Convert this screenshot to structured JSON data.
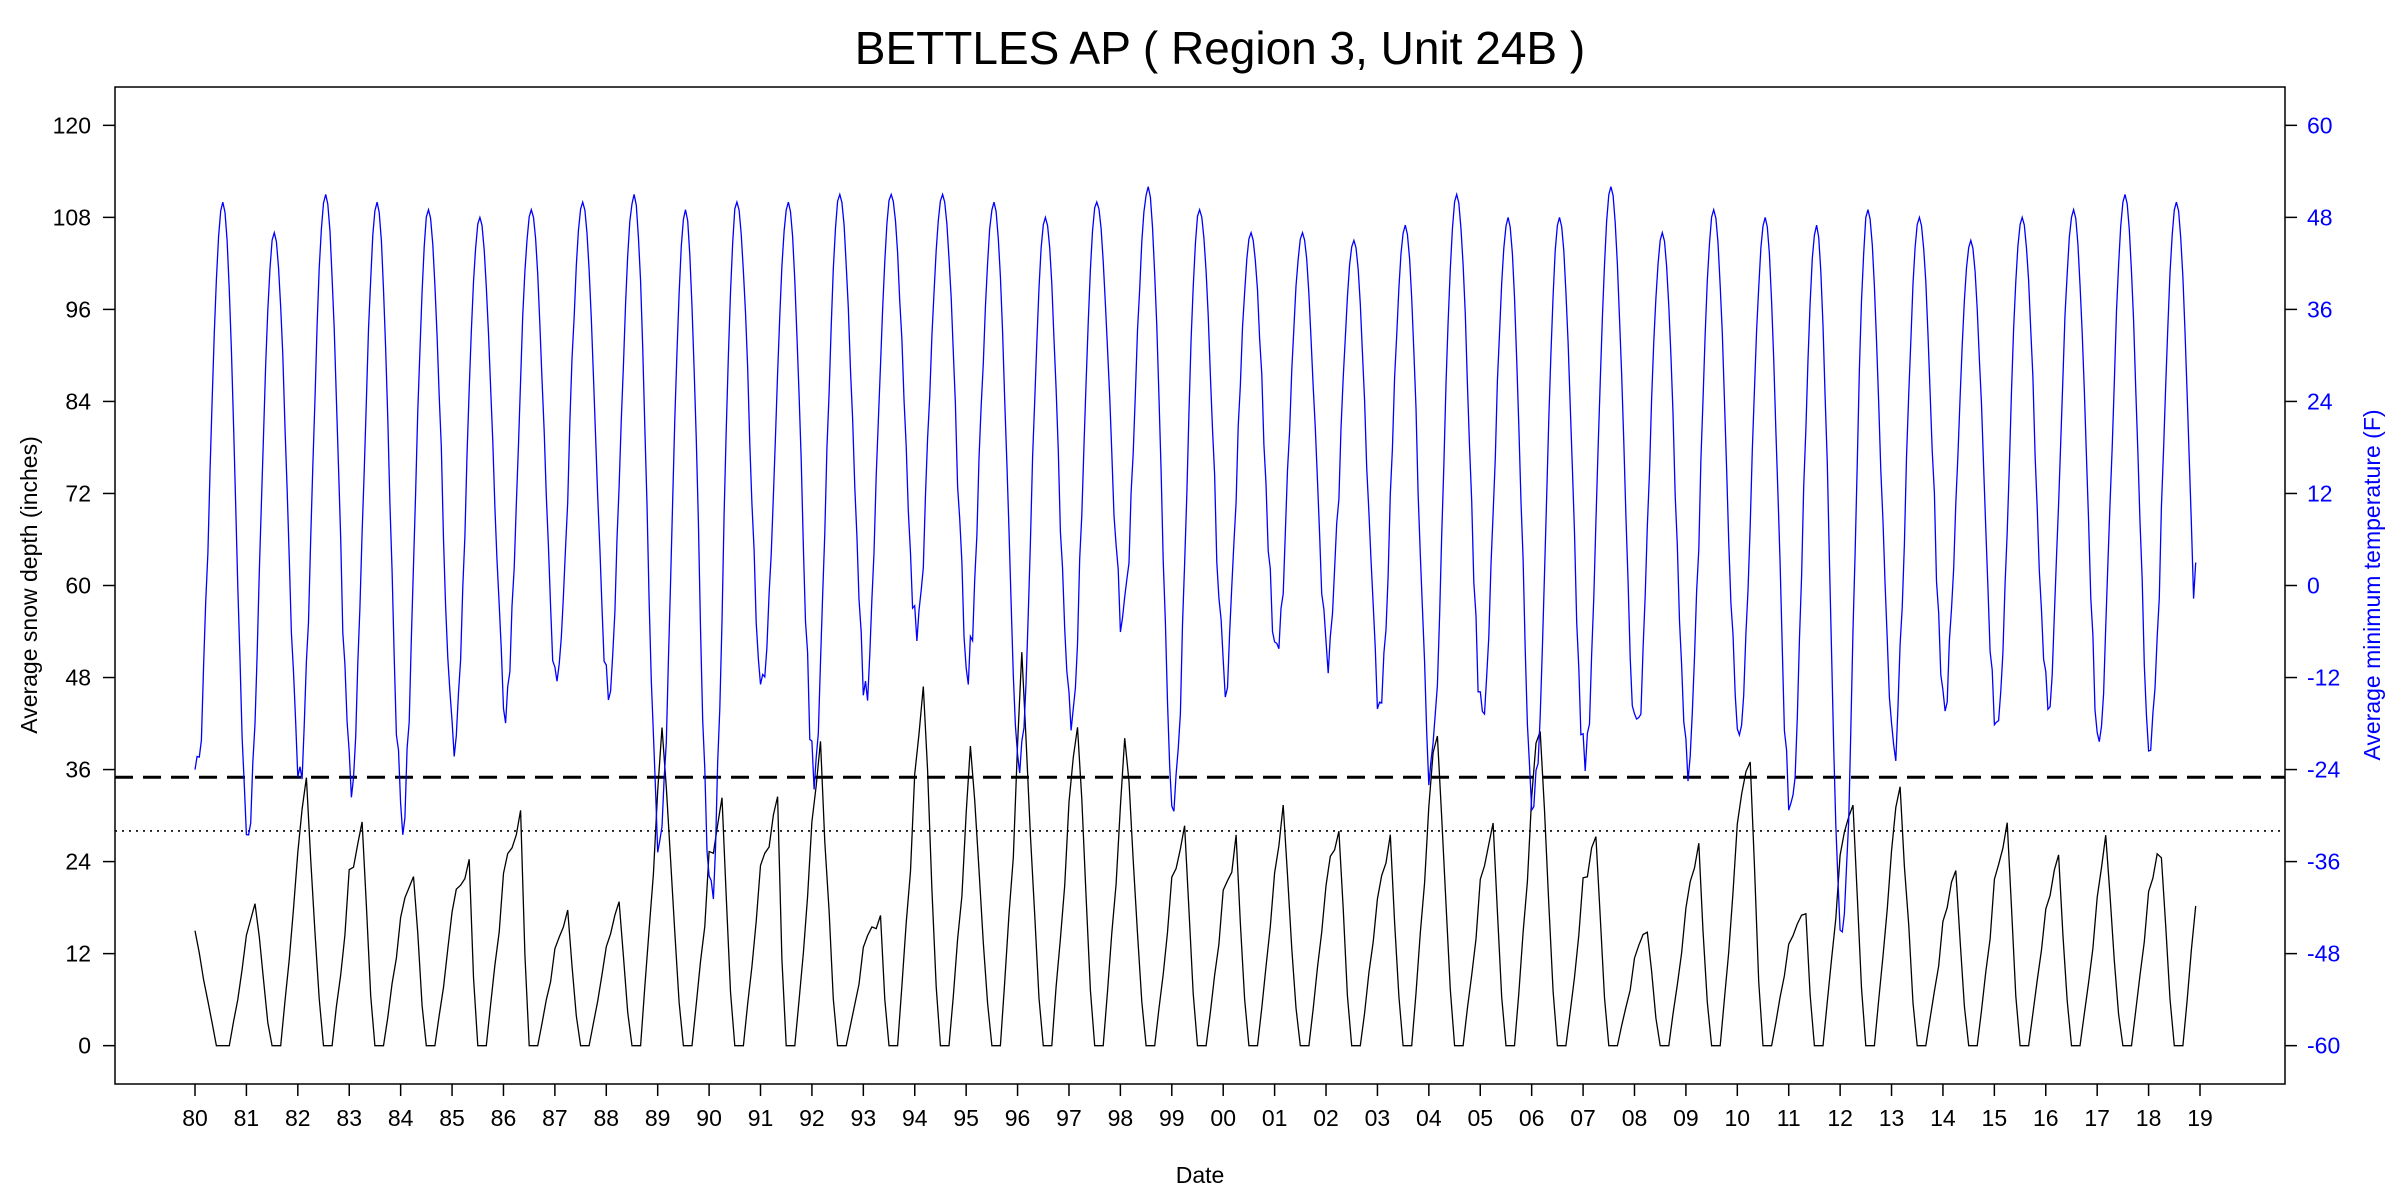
{
  "chart_data": {
    "type": "line",
    "title": "BETTLES AP ( Region 3, Unit 24B )",
    "xlabel": "Date",
    "ylabel": "Average snow depth (inches)",
    "y2label": "Average minimum temperature (F)",
    "x_ticks": [
      "80",
      "81",
      "82",
      "83",
      "84",
      "85",
      "86",
      "87",
      "88",
      "89",
      "90",
      "91",
      "92",
      "93",
      "94",
      "95",
      "96",
      "97",
      "98",
      "99",
      "00",
      "01",
      "02",
      "03",
      "04",
      "05",
      "06",
      "07",
      "08",
      "09",
      "10",
      "11",
      "12",
      "13",
      "14",
      "15",
      "16",
      "17",
      "18",
      "19"
    ],
    "x_range_years": [
      1980,
      2019
    ],
    "ylim": [
      -5,
      125
    ],
    "yticks": [
      0,
      12,
      24,
      36,
      48,
      60,
      72,
      84,
      96,
      108,
      120
    ],
    "y2lim": [
      -65,
      65
    ],
    "y2ticks": [
      -60,
      -48,
      -36,
      -24,
      -12,
      0,
      12,
      24,
      36,
      48,
      60
    ],
    "reference_lines": [
      {
        "style": "dashed",
        "value": 35
      },
      {
        "style": "dotted",
        "value": 28
      }
    ],
    "colors": {
      "snow": "#000000",
      "temperature": "#0000ff",
      "axis": "#000000"
    },
    "series": [
      {
        "axis": "left",
        "color": "#000000",
        "peaks": [
          19,
          35,
          29,
          23,
          24,
          31,
          17,
          18,
          44,
          32,
          31,
          38,
          17,
          48,
          41,
          50,
          44,
          42,
          28,
          26,
          30,
          29,
          27,
          42,
          29,
          43,
          28,
          15,
          25,
          38,
          18,
          33,
          34,
          22,
          29,
          25,
          26,
          26,
          37
        ],
        "peak_month": [
          2,
          2,
          3,
          3,
          4,
          4,
          3,
          3,
          1,
          3,
          4,
          2,
          4,
          2,
          1,
          1,
          2,
          1,
          3,
          3,
          2,
          3,
          3,
          2,
          3,
          2,
          3,
          3,
          3,
          3,
          4,
          3,
          2,
          3,
          3,
          3,
          2,
          3,
          2
        ],
        "start_value": 15,
        "end_value": 10
      },
      {
        "axis": "right",
        "color": "#0000ff",
        "summer_max": [
          50,
          46,
          51,
          50,
          49,
          48,
          49,
          50,
          51,
          49,
          50,
          50,
          51,
          51,
          51,
          50,
          48,
          50,
          52,
          49,
          46,
          46,
          45,
          47,
          51,
          48,
          48,
          52,
          46,
          49,
          48,
          47,
          49,
          48,
          45,
          48,
          49,
          51,
          50
        ],
        "winter_min": [
          -25,
          -32,
          -25,
          -26,
          -31,
          -20,
          -16,
          -14,
          -13,
          -35,
          -41,
          -14,
          -24,
          -14,
          -6,
          -10,
          -23,
          -18,
          -5,
          -29,
          -12,
          -10,
          -10,
          -15,
          -25,
          -18,
          -29,
          -24,
          -20,
          -24,
          -21,
          -30,
          -46,
          -22,
          -15,
          -19,
          -15,
          -20,
          -21
        ],
        "start_value": -24,
        "end_value": 3
      }
    ]
  }
}
